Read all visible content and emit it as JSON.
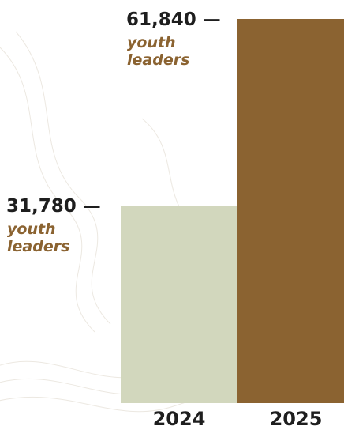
{
  "chart_data": {
    "type": "bar",
    "categories": [
      "2024",
      "2025"
    ],
    "values": [
      31780,
      61840
    ],
    "value_labels": [
      "31,780 —",
      "61,840 —"
    ],
    "unit_labels": [
      "youth leaders",
      "youth leaders"
    ],
    "colors": [
      "#d2d7bd",
      "#8b6331"
    ],
    "unit_color": "#8b6331",
    "title": "",
    "xlabel": "",
    "ylabel": "",
    "ylim": [
      0,
      61840
    ],
    "grid": false,
    "legend": "none"
  }
}
